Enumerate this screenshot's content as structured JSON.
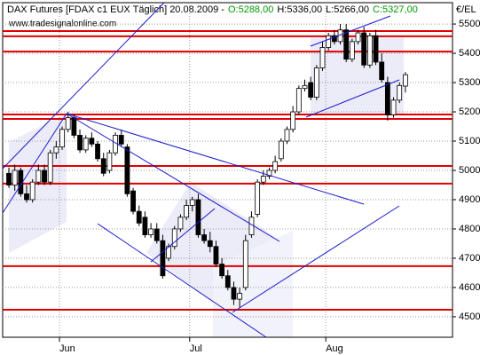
{
  "chart_data": {
    "type": "candlestick",
    "title": "DAX Futures [FDAX c1 EUX  Täglich] 20.08.2009 -",
    "quote": [
      {
        "label": "O:5288,00",
        "color": "#009900"
      },
      {
        "label": "H:5336,00",
        "color": "#000000"
      },
      {
        "label": "L:5266,00",
        "color": "#000000"
      },
      {
        "label": "C:5327,00",
        "color": "#009900"
      }
    ],
    "watermark": "www.tradesignalonline.com",
    "y_label": "€/EL",
    "categories": [
      null,
      null,
      null,
      null,
      null,
      null,
      null,
      null,
      null,
      "Jun",
      null,
      null,
      null,
      null,
      null,
      null,
      null,
      null,
      null,
      null,
      null,
      null,
      null,
      null,
      null,
      null,
      null,
      null,
      null,
      null,
      null,
      "Jul",
      null,
      null,
      null,
      null,
      null,
      null,
      null,
      null,
      null,
      null,
      null,
      null,
      null,
      null,
      null,
      null,
      null,
      null,
      null,
      null,
      null,
      null,
      "Aug",
      null,
      null,
      null,
      null,
      null,
      null,
      null,
      null,
      null,
      null,
      null,
      null,
      null
    ],
    "open": [
      4990,
      4950,
      5000,
      4920,
      4900,
      4960,
      5000,
      4960,
      5060,
      5080,
      5140,
      5180,
      5120,
      5070,
      5110,
      5090,
      5040,
      5000,
      5060,
      5120,
      5080,
      4930,
      4860,
      4840,
      4780,
      4800,
      4760,
      4700,
      4740,
      4800,
      4840,
      4880,
      4900,
      4780,
      4760,
      4740,
      4680,
      4640,
      4600,
      4560,
      4600,
      4780,
      4850,
      4960,
      4980,
      5000,
      5040,
      5100,
      5140,
      5200,
      5280,
      5300,
      5250,
      5350,
      5420,
      5460,
      5440,
      5480,
      5380,
      5440,
      5470,
      5360,
      5460,
      5370,
      5300,
      5190,
      5240,
      5288
    ],
    "high": [
      5010,
      5020,
      5010,
      4950,
      4970,
      5020,
      5020,
      5070,
      5100,
      5150,
      5200,
      5190,
      5140,
      5120,
      5130,
      5100,
      5060,
      5070,
      5130,
      5140,
      5090,
      4940,
      4880,
      4860,
      4820,
      4820,
      4780,
      4750,
      4810,
      4850,
      4900,
      4910,
      4920,
      4800,
      4790,
      4760,
      4700,
      4660,
      4620,
      4600,
      4780,
      4860,
      4970,
      5000,
      5010,
      5050,
      5110,
      5150,
      5220,
      5290,
      5310,
      5320,
      5360,
      5440,
      5470,
      5480,
      5500,
      5500,
      5450,
      5480,
      5490,
      5470,
      5480,
      5400,
      5320,
      5250,
      5300,
      5336
    ],
    "low": [
      4940,
      4930,
      4910,
      4890,
      4890,
      4950,
      4950,
      4950,
      5040,
      5070,
      5130,
      5110,
      5060,
      5060,
      5080,
      5030,
      4980,
      4990,
      5050,
      5080,
      4910,
      4850,
      4810,
      4770,
      4770,
      4750,
      4630,
      4690,
      4730,
      4790,
      4830,
      4860,
      4770,
      4750,
      4720,
      4670,
      4630,
      4590,
      4540,
      4530,
      4590,
      4770,
      4840,
      4950,
      4970,
      4990,
      5030,
      5090,
      5130,
      5190,
      5270,
      5240,
      5240,
      5340,
      5410,
      5430,
      5430,
      5370,
      5370,
      5430,
      5350,
      5350,
      5360,
      5300,
      5170,
      5180,
      5230,
      5266
    ],
    "close": [
      4950,
      5000,
      4920,
      4900,
      4960,
      5000,
      4960,
      5060,
      5080,
      5140,
      5180,
      5120,
      5070,
      5110,
      5090,
      5040,
      4990,
      5060,
      5120,
      5090,
      4920,
      4860,
      4820,
      4780,
      4800,
      4760,
      4640,
      4740,
      4800,
      4840,
      4880,
      4900,
      4780,
      4760,
      4740,
      4680,
      4640,
      4600,
      4560,
      4580,
      4760,
      4840,
      4960,
      4980,
      5000,
      5030,
      5100,
      5140,
      5200,
      5280,
      5290,
      5250,
      5350,
      5420,
      5460,
      5440,
      5480,
      5380,
      5440,
      5470,
      5360,
      5460,
      5370,
      5310,
      5190,
      5240,
      5290,
      5327
    ],
    "up_color": "#ffffff",
    "down_color": "#000000",
    "levels": [
      5476,
      5458,
      5406,
      5191,
      5176,
      5015,
      4955,
      4673,
      4524
    ],
    "level_color": "#e00000",
    "ylim": [
      4430,
      5573
    ],
    "yticks": [
      4500,
      4600,
      4700,
      4800,
      4900,
      5000,
      5100,
      5200,
      5300,
      5400,
      5500
    ],
    "grid": true
  }
}
